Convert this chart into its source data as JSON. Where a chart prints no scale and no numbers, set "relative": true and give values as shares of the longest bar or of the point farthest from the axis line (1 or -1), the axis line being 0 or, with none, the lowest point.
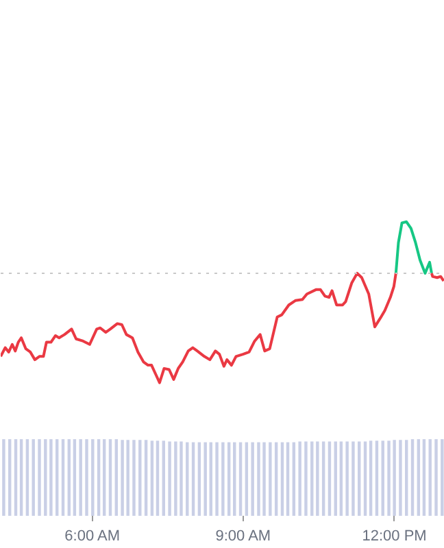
{
  "chart_data": [
    {
      "type": "line",
      "relative": true,
      "tick_labels": false,
      "xlim": [
        4.17,
        13.0
      ],
      "x": [
        4.17,
        4.26,
        4.33,
        4.4,
        4.46,
        4.52,
        4.58,
        4.67,
        4.76,
        4.85,
        4.94,
        5.02,
        5.08,
        5.17,
        5.26,
        5.33,
        5.44,
        5.58,
        5.67,
        5.81,
        5.94,
        6.08,
        6.15,
        6.26,
        6.35,
        6.49,
        6.58,
        6.67,
        6.79,
        6.9,
        7.01,
        7.1,
        7.17,
        7.26,
        7.33,
        7.42,
        7.52,
        7.61,
        7.7,
        7.79,
        7.9,
        7.99,
        8.08,
        8.22,
        8.33,
        8.44,
        8.52,
        8.61,
        8.67,
        8.76,
        8.85,
        8.99,
        9.11,
        9.22,
        9.33,
        9.42,
        9.52,
        9.67,
        9.76,
        9.9,
        10.03,
        10.17,
        10.26,
        10.44,
        10.53,
        10.62,
        10.7,
        10.76,
        10.85,
        10.97,
        11.03,
        11.15,
        11.26,
        11.35,
        11.49,
        11.61,
        11.72,
        11.81,
        11.92,
        11.99,
        12.03,
        12.08,
        12.15,
        12.24,
        12.33,
        12.42,
        12.51,
        12.61,
        12.7,
        12.74
      ],
      "series": [
        {
          "color": "#ea3943",
          "values": [
            -0.76,
            -0.68,
            -0.72,
            -0.65,
            -0.71,
            -0.63,
            -0.59,
            -0.69,
            -0.72,
            -0.79,
            -0.76,
            -0.76,
            -0.63,
            -0.63,
            -0.57,
            -0.59,
            -0.56,
            -0.51,
            -0.6,
            -0.62,
            -0.65,
            -0.51,
            -0.5,
            -0.54,
            -0.51,
            -0.46,
            -0.47,
            -0.56,
            -0.59,
            -0.72,
            -0.81,
            -0.84,
            -0.84,
            -0.93,
            -1,
            -0.87,
            -0.88,
            -0.97,
            -0.87,
            -0.81,
            -0.71,
            -0.68,
            -0.71,
            -0.76,
            -0.79,
            -0.71,
            -0.74,
            -0.85,
            -0.79,
            -0.84,
            -0.76,
            -0.74,
            -0.72,
            -0.62,
            -0.56,
            -0.71,
            -0.69,
            -0.4,
            -0.38,
            -0.29,
            -0.25,
            -0.24,
            -0.19,
            -0.15,
            -0.15,
            -0.21,
            -0.22,
            -0.16,
            -0.29,
            -0.29,
            -0.26,
            -0.09,
            0,
            -0.04,
            -0.19,
            -0.49,
            -0.41,
            -0.34,
            -0.22,
            -0.12,
            0,
            null,
            null,
            null,
            null,
            null,
            null,
            null,
            null,
            null
          ]
        },
        {
          "color": "#ea3943",
          "x": [
            12.74,
            12.76,
            12.85,
            12.92,
            12.98
          ],
          "values": [
            0,
            -0.03,
            -0.04,
            -0.03,
            -0.07
          ]
        },
        {
          "color": "#16c784",
          "values": [
            null,
            null,
            null,
            null,
            null,
            null,
            null,
            null,
            null,
            null,
            null,
            null,
            null,
            null,
            null,
            null,
            null,
            null,
            null,
            null,
            null,
            null,
            null,
            null,
            null,
            null,
            null,
            null,
            null,
            null,
            null,
            null,
            null,
            null,
            null,
            null,
            null,
            null,
            null,
            null,
            null,
            null,
            null,
            null,
            null,
            null,
            null,
            null,
            null,
            null,
            null,
            null,
            null,
            null,
            null,
            null,
            null,
            null,
            null,
            null,
            null,
            null,
            null,
            null,
            null,
            null,
            null,
            null,
            null,
            null,
            null,
            null,
            null,
            null,
            null,
            null,
            null,
            null,
            null,
            null,
            0,
            0.28,
            0.46,
            0.47,
            0.41,
            0.28,
            0.12,
            0,
            0.1,
            0
          ]
        }
      ],
      "ref_lines": [
        {
          "axis": "y",
          "value": 0,
          "color": "#c8c8c8",
          "line_style": "dotted"
        }
      ]
    },
    {
      "type": "bar",
      "relative": true,
      "color": "#c9cfe6",
      "xlim": [
        4.17,
        13.0
      ],
      "x": [
        4.23,
        4.35,
        4.47,
        4.58,
        4.7,
        4.82,
        4.94,
        5.06,
        5.17,
        5.29,
        5.41,
        5.53,
        5.64,
        5.76,
        5.88,
        6.0,
        6.12,
        6.23,
        6.35,
        6.47,
        6.59,
        6.7,
        6.82,
        6.94,
        7.06,
        7.18,
        7.29,
        7.41,
        7.53,
        7.65,
        7.76,
        7.88,
        8.0,
        8.12,
        8.24,
        8.35,
        8.47,
        8.59,
        8.71,
        8.82,
        8.94,
        9.06,
        9.18,
        9.3,
        9.41,
        9.53,
        9.65,
        9.77,
        9.88,
        10.0,
        10.12,
        10.24,
        10.36,
        10.47,
        10.59,
        10.71,
        10.83,
        10.94,
        11.06,
        11.18,
        11.3,
        11.42,
        11.53,
        11.65,
        11.77,
        11.89,
        12.0,
        12.12,
        12.24,
        12.36,
        12.48,
        12.59,
        12.71,
        12.83,
        12.95
      ],
      "xticks": [
        {
          "value": 6,
          "label": "6:00 AM"
        },
        {
          "value": 9,
          "label": "9:00 AM"
        },
        {
          "value": 12,
          "label": "12:00 PM"
        }
      ],
      "values": [
        1,
        1,
        1,
        1,
        1,
        1,
        1,
        1,
        1,
        1,
        1,
        1,
        1,
        1,
        1,
        1,
        1,
        1,
        1,
        1,
        0.99,
        0.99,
        0.99,
        0.99,
        0.99,
        0.98,
        0.98,
        0.98,
        0.97,
        0.97,
        0.97,
        0.96,
        0.96,
        0.96,
        0.96,
        0.96,
        0.96,
        0.96,
        0.96,
        0.96,
        0.96,
        0.96,
        0.96,
        0.96,
        0.96,
        0.96,
        0.96,
        0.96,
        0.96,
        0.96,
        0.97,
        0.97,
        0.97,
        0.97,
        0.97,
        0.97,
        0.97,
        0.97,
        0.97,
        0.97,
        0.97,
        0.97,
        0.98,
        0.98,
        0.98,
        0.98,
        0.99,
        0.99,
        0.99,
        1,
        1,
        1,
        1,
        1,
        1
      ]
    }
  ]
}
